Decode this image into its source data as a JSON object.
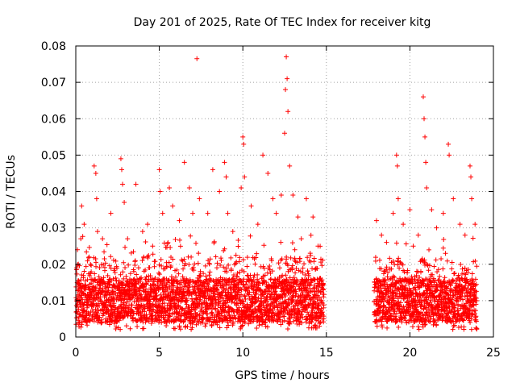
{
  "chart_data": {
    "type": "scatter",
    "title": "Day 201 of 2025, Rate Of TEC Index for receiver kitg",
    "xlabel": "GPS time / hours",
    "ylabel": "ROTI / TECUs",
    "xlim": [
      0,
      25
    ],
    "ylim": [
      0,
      0.08
    ],
    "x_ticks": [
      0,
      5,
      10,
      15,
      20,
      25
    ],
    "x_tick_labels": [
      "0",
      "5",
      "10",
      "15",
      "20",
      "25"
    ],
    "y_ticks": [
      0,
      0.01,
      0.02,
      0.03,
      0.04,
      0.05,
      0.06,
      0.07,
      0.08
    ],
    "y_tick_labels": [
      "0",
      "0.01",
      "0.02",
      "0.03",
      "0.04",
      "0.05",
      "0.06",
      "0.07",
      "0.08"
    ],
    "grid": true,
    "marker": "+",
    "color": "#ff0000",
    "data_gap_hours": [
      14.85,
      17.85
    ],
    "series": [
      {
        "name": "ROTI",
        "points": [
          [
            0.1,
            0.024
          ],
          [
            0.3,
            0.027
          ],
          [
            0.35,
            0.036
          ],
          [
            0.5,
            0.031
          ],
          [
            0.8,
            0.022
          ],
          [
            1.1,
            0.047
          ],
          [
            1.2,
            0.045
          ],
          [
            1.25,
            0.038
          ],
          [
            1.3,
            0.029
          ],
          [
            1.6,
            0.027
          ],
          [
            2.1,
            0.034
          ],
          [
            2.7,
            0.049
          ],
          [
            2.75,
            0.046
          ],
          [
            2.8,
            0.042
          ],
          [
            2.9,
            0.037
          ],
          [
            3.1,
            0.027
          ],
          [
            3.6,
            0.042
          ],
          [
            4.0,
            0.029
          ],
          [
            4.3,
            0.031
          ],
          [
            4.6,
            0.025
          ],
          [
            5.0,
            0.046
          ],
          [
            5.05,
            0.04
          ],
          [
            5.2,
            0.034
          ],
          [
            5.6,
            0.041
          ],
          [
            5.8,
            0.036
          ],
          [
            6.2,
            0.032
          ],
          [
            6.5,
            0.048
          ],
          [
            6.8,
            0.041
          ],
          [
            7.0,
            0.034
          ],
          [
            7.25,
            0.0765
          ],
          [
            7.4,
            0.038
          ],
          [
            7.9,
            0.034
          ],
          [
            8.2,
            0.046
          ],
          [
            8.6,
            0.04
          ],
          [
            8.9,
            0.048
          ],
          [
            9.0,
            0.044
          ],
          [
            9.1,
            0.034
          ],
          [
            9.4,
            0.029
          ],
          [
            9.9,
            0.041
          ],
          [
            10.0,
            0.055
          ],
          [
            10.05,
            0.053
          ],
          [
            10.1,
            0.044
          ],
          [
            10.5,
            0.036
          ],
          [
            10.9,
            0.031
          ],
          [
            11.2,
            0.05
          ],
          [
            11.5,
            0.045
          ],
          [
            11.8,
            0.038
          ],
          [
            12.0,
            0.034
          ],
          [
            12.3,
            0.039
          ],
          [
            12.5,
            0.056
          ],
          [
            12.55,
            0.068
          ],
          [
            12.6,
            0.077
          ],
          [
            12.65,
            0.071
          ],
          [
            12.7,
            0.062
          ],
          [
            12.8,
            0.047
          ],
          [
            13.0,
            0.039
          ],
          [
            13.3,
            0.033
          ],
          [
            13.5,
            0.027
          ],
          [
            13.8,
            0.038
          ],
          [
            14.2,
            0.033
          ],
          [
            14.5,
            0.025
          ],
          [
            18.0,
            0.032
          ],
          [
            18.3,
            0.028
          ],
          [
            18.6,
            0.026
          ],
          [
            19.0,
            0.034
          ],
          [
            19.2,
            0.05
          ],
          [
            19.25,
            0.047
          ],
          [
            19.3,
            0.038
          ],
          [
            19.6,
            0.031
          ],
          [
            20.0,
            0.035
          ],
          [
            20.2,
            0.025
          ],
          [
            20.5,
            0.028
          ],
          [
            20.8,
            0.066
          ],
          [
            20.85,
            0.06
          ],
          [
            20.9,
            0.055
          ],
          [
            20.95,
            0.048
          ],
          [
            21.0,
            0.041
          ],
          [
            21.3,
            0.035
          ],
          [
            21.6,
            0.03
          ],
          [
            22.0,
            0.034
          ],
          [
            22.3,
            0.053
          ],
          [
            22.35,
            0.05
          ],
          [
            22.6,
            0.038
          ],
          [
            23.0,
            0.031
          ],
          [
            23.3,
            0.028
          ],
          [
            23.6,
            0.047
          ],
          [
            23.65,
            0.044
          ],
          [
            23.7,
            0.038
          ],
          [
            23.9,
            0.031
          ]
        ]
      }
    ]
  }
}
